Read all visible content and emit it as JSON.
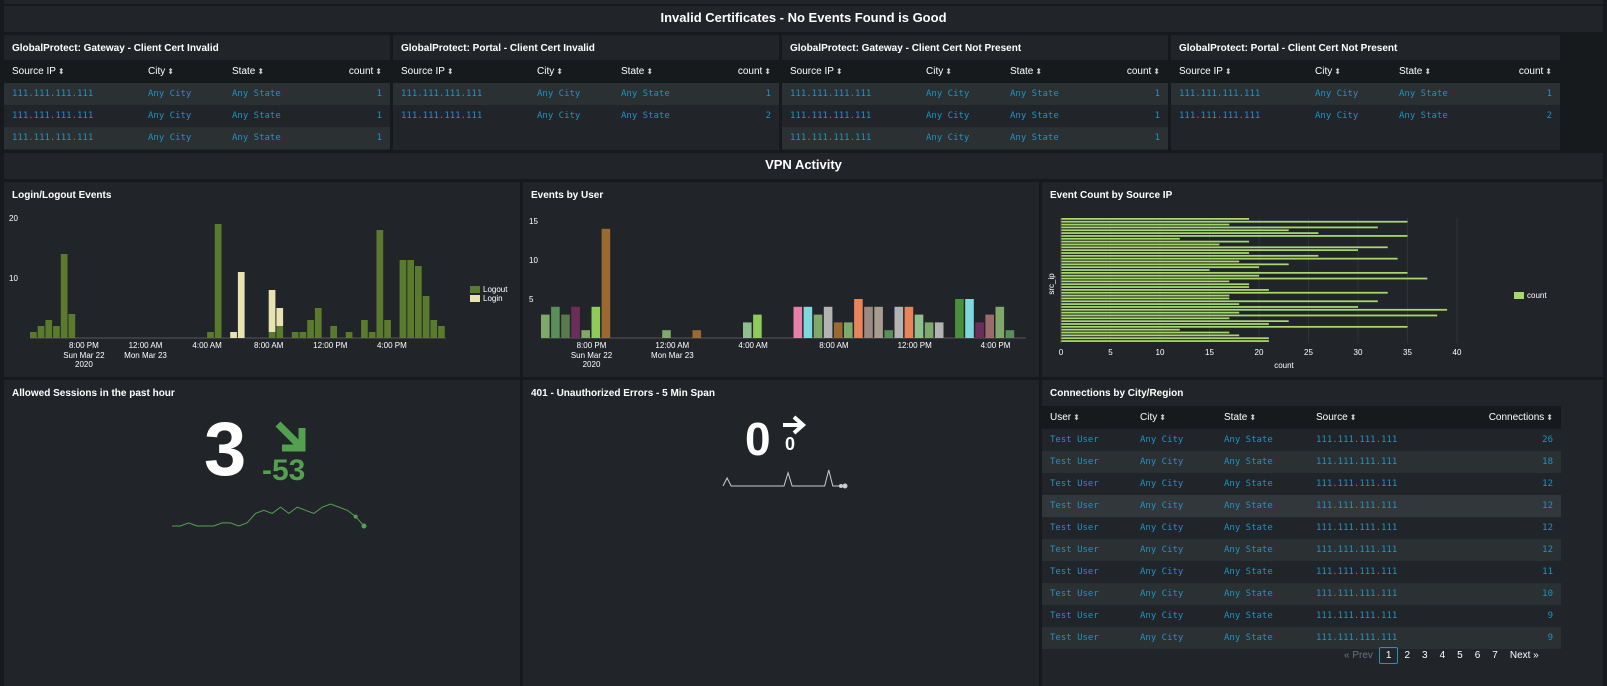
{
  "sections": {
    "invalid_certs": "Invalid Certificates - No Events Found is Good",
    "vpn_activity": "VPN Activity"
  },
  "cert_panels": [
    {
      "title": "GlobalProtect: Gateway - Client Cert Invalid",
      "rows": [
        [
          "111.111.111.111",
          "Any City",
          "Any State",
          "1"
        ],
        [
          "111.111.111.111",
          "Any City",
          "Any State",
          "1"
        ],
        [
          "111.111.111.111",
          "Any City",
          "Any State",
          "1"
        ]
      ]
    },
    {
      "title": "GlobalProtect: Portal - Client Cert Invalid",
      "rows": [
        [
          "111.111.111.111",
          "Any City",
          "Any State",
          "1"
        ],
        [
          "111.111.111.111",
          "Any City",
          "Any State",
          "2"
        ]
      ]
    },
    {
      "title": "GlobalProtect: Gateway - Client Cert Not Present",
      "rows": [
        [
          "111.111.111.111",
          "Any City",
          "Any State",
          "1"
        ],
        [
          "111.111.111.111",
          "Any City",
          "Any State",
          "1"
        ],
        [
          "111.111.111.111",
          "Any City",
          "Any State",
          "1"
        ]
      ]
    },
    {
      "title": "GlobalProtect: Portal - Client Cert Not Present",
      "rows": [
        [
          "111.111.111.111",
          "Any City",
          "Any State",
          "1"
        ],
        [
          "111.111.111.111",
          "Any City",
          "Any State",
          "2"
        ]
      ]
    }
  ],
  "cert_columns": [
    "Source IP",
    "City",
    "State",
    "count"
  ],
  "panels": {
    "login_logout": "Login/Logout Events",
    "events_by_user": "Events by User",
    "event_count_ip": "Event Count by Source IP",
    "allowed_sessions": "Allowed Sessions in the past hour",
    "unauthorized": "401 - Unauthorized Errors - 5 Min Span",
    "connections": "Connections by City/Region"
  },
  "allowed_sessions": {
    "value": "3",
    "delta": "-53"
  },
  "unauthorized": {
    "value": "0",
    "delta": "0"
  },
  "connections_columns": [
    "User",
    "City",
    "State",
    "Source",
    "Connections"
  ],
  "connections_rows": [
    [
      "Test User",
      "Any City",
      "Any State",
      "111.111.111.111",
      "26"
    ],
    [
      "Test User",
      "Any City",
      "Any State",
      "111.111.111.111",
      "18"
    ],
    [
      "Test User",
      "Any City",
      "Any State",
      "111.111.111.111",
      "12"
    ],
    [
      "Test User",
      "Any City",
      "Any State",
      "111.111.111.111",
      "12"
    ],
    [
      "Test User",
      "Any City",
      "Any State",
      "111.111.111.111",
      "12"
    ],
    [
      "Test User",
      "Any City",
      "Any State",
      "111.111.111.111",
      "12"
    ],
    [
      "Test User",
      "Any City",
      "Any State",
      "111.111.111.111",
      "11"
    ],
    [
      "Test User",
      "Any City",
      "Any State",
      "111.111.111.111",
      "10"
    ],
    [
      "Test User",
      "Any City",
      "Any State",
      "111.111.111.111",
      "9"
    ],
    [
      "Test User",
      "Any City",
      "Any State",
      "111.111.111.111",
      "9"
    ]
  ],
  "pager": {
    "prev": "« Prev",
    "pages": [
      "1",
      "2",
      "3",
      "4",
      "5",
      "6",
      "7"
    ],
    "next": "Next »",
    "current": "1"
  },
  "chart_data": [
    {
      "type": "bar",
      "title": "Login/Logout Events",
      "ylim": [
        0,
        20
      ],
      "yticks": [
        10,
        20
      ],
      "xticks": [
        {
          "label": "8:00 PM",
          "sub": [
            "Sun Mar 22",
            "2020"
          ],
          "index": 7
        },
        {
          "label": "12:00 AM",
          "sub": [
            "Mon Mar 23"
          ],
          "index": 15
        },
        {
          "label": "4:00 AM",
          "index": 23
        },
        {
          "label": "8:00 AM",
          "index": 31
        },
        {
          "label": "12:00 PM",
          "index": 39
        },
        {
          "label": "4:00 PM",
          "index": 47
        }
      ],
      "legend_position": "right",
      "series": [
        {
          "name": "Logout",
          "color": "#5a7a2e",
          "values": [
            1,
            2,
            3,
            2,
            14,
            4,
            0,
            0,
            0,
            0,
            0,
            0,
            0,
            0,
            0,
            0,
            0,
            0,
            0,
            0,
            0,
            0,
            0,
            1,
            19,
            0,
            0,
            0,
            0,
            0,
            0,
            1,
            2,
            0,
            1,
            1,
            3,
            5,
            0,
            2,
            0,
            1,
            0,
            3,
            1,
            18,
            3,
            0,
            13,
            13,
            12,
            7,
            3,
            2
          ]
        },
        {
          "name": "Login",
          "color": "#e9e3b4",
          "values": [
            0,
            0,
            0,
            0,
            0,
            0,
            0,
            0,
            0,
            0,
            0,
            0,
            0,
            0,
            0,
            0,
            0,
            0,
            0,
            0,
            0,
            0,
            0,
            0,
            0,
            0,
            1,
            11,
            0,
            0,
            0,
            7,
            3,
            0,
            0,
            0,
            0,
            0,
            0,
            0,
            0,
            0,
            0,
            0,
            0,
            0,
            0,
            0,
            0,
            0,
            0,
            0,
            0,
            0
          ]
        }
      ]
    },
    {
      "type": "bar",
      "title": "Events by User",
      "ylim": [
        0,
        15
      ],
      "yticks": [
        5,
        10,
        15
      ],
      "xticks": [
        {
          "label": "8:00 PM",
          "sub": [
            "Sun Mar 22",
            "2020"
          ],
          "index": 5
        },
        {
          "label": "12:00 AM",
          "sub": [
            "Mon Mar 23"
          ],
          "index": 13
        },
        {
          "label": "4:00 AM",
          "index": 21
        },
        {
          "label": "8:00 AM",
          "index": 29
        },
        {
          "label": "12:00 PM",
          "index": 37
        },
        {
          "label": "4:00 PM",
          "index": 45
        }
      ],
      "bars": [
        {
          "i": 0,
          "v": 3,
          "c": "#7fa86b"
        },
        {
          "i": 1,
          "v": 4,
          "c": "#5a8f5a"
        },
        {
          "i": 2,
          "v": 3,
          "c": "#5a7a4e"
        },
        {
          "i": 3,
          "v": 4,
          "c": "#6b2e5a"
        },
        {
          "i": 4,
          "v": 1,
          "c": "#7fa86b"
        },
        {
          "i": 5,
          "v": 4,
          "c": "#8ecb5a"
        },
        {
          "i": 6,
          "v": 14,
          "c": "#9b6a32"
        },
        {
          "i": 12,
          "v": 1,
          "c": "#7fa86b"
        },
        {
          "i": 15,
          "v": 1,
          "c": "#9b6a32"
        },
        {
          "i": 20,
          "v": 2,
          "c": "#8fbf8f"
        },
        {
          "i": 21,
          "v": 3,
          "c": "#8ecb5a"
        },
        {
          "i": 25,
          "v": 4,
          "c": "#e87fa8"
        },
        {
          "i": 26,
          "v": 4,
          "c": "#7fd8dc"
        },
        {
          "i": 27,
          "v": 3,
          "c": "#7fa86b"
        },
        {
          "i": 28,
          "v": 4,
          "c": "#b3b3b3"
        },
        {
          "i": 29,
          "v": 2,
          "c": "#9b6a32"
        },
        {
          "i": 30,
          "v": 2,
          "c": "#7fa86b"
        },
        {
          "i": 31,
          "v": 5,
          "c": "#e8835a"
        },
        {
          "i": 32,
          "v": 4,
          "c": "#9b8a7f"
        },
        {
          "i": 33,
          "v": 4,
          "c": "#a89b8f"
        },
        {
          "i": 34,
          "v": 1,
          "c": "#5a8f5a"
        },
        {
          "i": 35,
          "v": 4,
          "c": "#b3b3b3"
        },
        {
          "i": 36,
          "v": 4,
          "c": "#e8835a"
        },
        {
          "i": 37,
          "v": 3,
          "c": "#8fbf8f"
        },
        {
          "i": 38,
          "v": 2,
          "c": "#7fa86b"
        },
        {
          "i": 39,
          "v": 2,
          "c": "#b3b3b3"
        },
        {
          "i": 41,
          "v": 5,
          "c": "#4a8f3a"
        },
        {
          "i": 42,
          "v": 5,
          "c": "#7fd8dc"
        },
        {
          "i": 43,
          "v": 2,
          "c": "#6b2e5a"
        },
        {
          "i": 44,
          "v": 3,
          "c": "#9b6a6a"
        },
        {
          "i": 45,
          "v": 4,
          "c": "#7fa86b"
        },
        {
          "i": 46,
          "v": 1,
          "c": "#5a8f5a"
        }
      ],
      "slots": 48
    },
    {
      "type": "bar",
      "orientation": "horizontal",
      "title": "Event Count by Source IP",
      "xlabel": "count",
      "ylabel": "src_ip",
      "xlim": [
        0,
        40
      ],
      "xticks": [
        0,
        5,
        10,
        15,
        20,
        25,
        30,
        35,
        40
      ],
      "legend": "count",
      "legend_position": "right",
      "color": "#a8d86b",
      "values": [
        19,
        35,
        17,
        32,
        23,
        26,
        35,
        12,
        19,
        16,
        33,
        30,
        19,
        26,
        34,
        18,
        23,
        20,
        15,
        35,
        20,
        37,
        17,
        19,
        19,
        21,
        33,
        17,
        17,
        32,
        18,
        30,
        39,
        18,
        38,
        17,
        23,
        21,
        35,
        12,
        17,
        18,
        21,
        21
      ]
    },
    {
      "type": "line",
      "title": "Allowed Sessions in the past hour",
      "values": [
        3,
        3,
        4,
        3,
        3,
        3,
        4,
        4,
        3,
        4,
        7,
        8,
        7,
        9,
        7,
        9,
        8,
        7,
        9,
        10,
        9,
        8,
        6,
        3
      ]
    },
    {
      "type": "line",
      "title": "401 - Unauthorized Errors - 5 Min Span",
      "values": [
        0,
        3,
        0,
        0,
        0,
        0,
        0,
        0,
        0,
        0,
        0,
        0,
        0,
        0,
        0,
        0,
        5,
        0,
        0,
        0,
        0,
        0,
        0,
        0,
        0,
        0,
        6,
        0,
        0,
        0,
        0
      ]
    }
  ]
}
